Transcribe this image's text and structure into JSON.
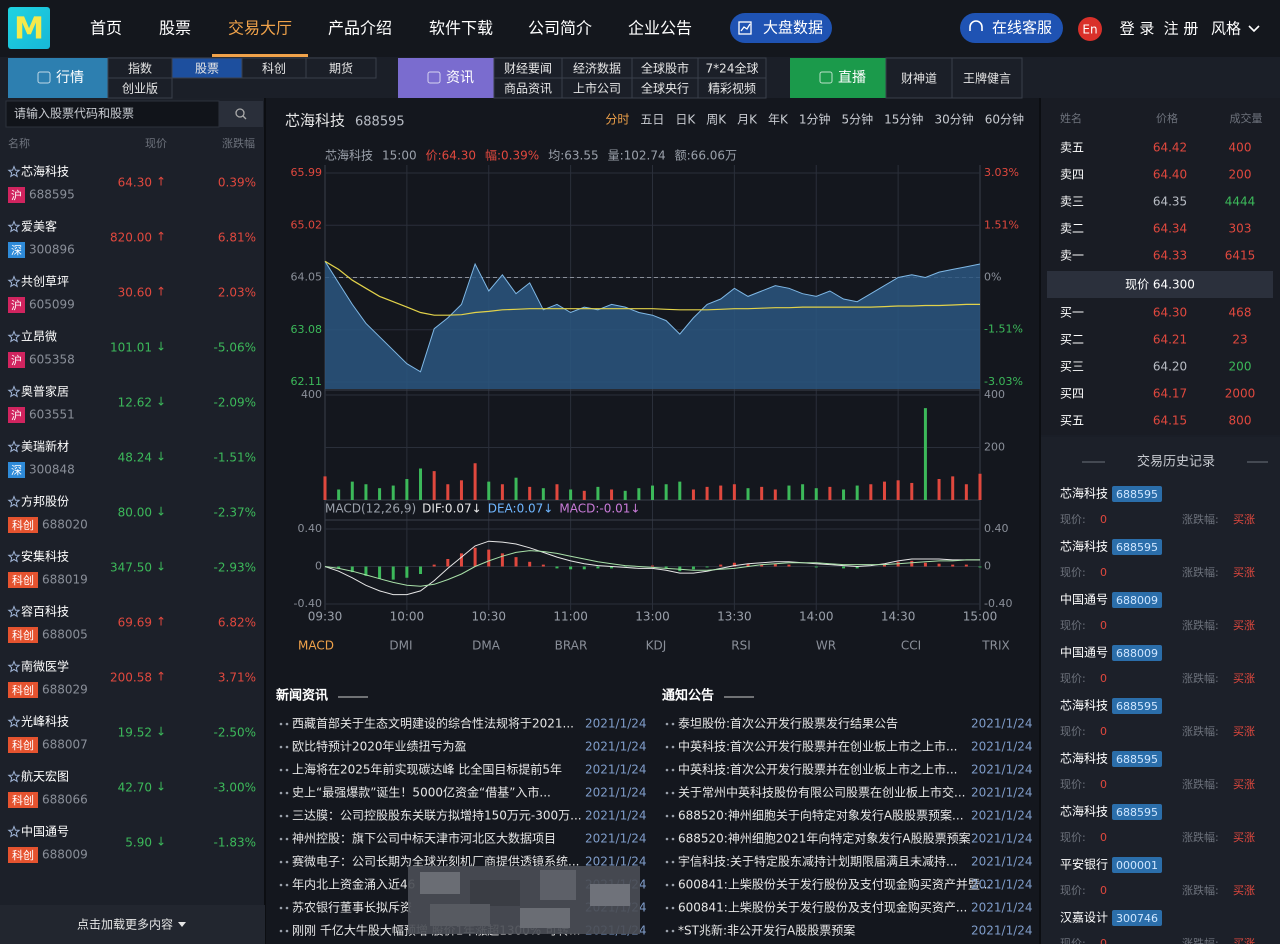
{
  "nav": {
    "logo": "M",
    "items": [
      "首页",
      "股票",
      "交易大厅",
      "产品介绍",
      "软件下载",
      "公司简介",
      "企业公告"
    ],
    "active": 2,
    "market_button": "大盘数据",
    "service": "在线客服",
    "lang": "En",
    "login": "登 录",
    "register": "注 册",
    "style": "风格"
  },
  "subnav": [
    {
      "label": "行情",
      "color": "#2d7fb0",
      "items": [
        "指数",
        "股票",
        "科创",
        "期货",
        "创业版"
      ],
      "active": 1
    },
    {
      "label": "资讯",
      "color": "#7a6ccf",
      "items": [
        "财经要闻",
        "经济数据",
        "全球股市",
        "7*24全球",
        "商品资讯",
        "上市公司",
        "全球央行",
        "精彩视频"
      ]
    },
    {
      "label": "直播",
      "color": "#1b9a4b",
      "items": [
        "财神道",
        "王牌健言"
      ]
    }
  ],
  "search": {
    "placeholder": "请输入股票代码和股票"
  },
  "stock_list": {
    "headers": [
      "名称",
      "现价",
      "涨跌幅"
    ],
    "market_colors": {
      "沪": "#d1245f",
      "深": "#2e8ad8",
      "科创": "#e5532f"
    },
    "rows": [
      {
        "name": "芯海科技",
        "market": "沪",
        "code": "688595",
        "price": "64.30",
        "arrow": "↑",
        "change": "0.39%"
      },
      {
        "name": "爱美客",
        "market": "深",
        "code": "300896",
        "price": "820.00",
        "arrow": "↑",
        "change": "6.81%"
      },
      {
        "name": "共创草坪",
        "market": "沪",
        "code": "605099",
        "price": "30.60",
        "arrow": "↑",
        "change": "2.03%"
      },
      {
        "name": "立昂微",
        "market": "沪",
        "code": "605358",
        "price": "101.01",
        "arrow": "↓",
        "change": "-5.06%"
      },
      {
        "name": "奥普家居",
        "market": "沪",
        "code": "603551",
        "price": "12.62",
        "arrow": "↓",
        "change": "-2.09%"
      },
      {
        "name": "美瑞新材",
        "market": "深",
        "code": "300848",
        "price": "48.24",
        "arrow": "↓",
        "change": "-1.51%"
      },
      {
        "name": "方邦股份",
        "market": "科创",
        "code": "688020",
        "price": "80.00",
        "arrow": "↓",
        "change": "-2.37%"
      },
      {
        "name": "安集科技",
        "market": "科创",
        "code": "688019",
        "price": "347.50",
        "arrow": "↓",
        "change": "-2.93%"
      },
      {
        "name": "容百科技",
        "market": "科创",
        "code": "688005",
        "price": "69.69",
        "arrow": "↑",
        "change": "6.82%"
      },
      {
        "name": "南微医学",
        "market": "科创",
        "code": "688029",
        "price": "200.58",
        "arrow": "↑",
        "change": "3.71%"
      },
      {
        "name": "光峰科技",
        "market": "科创",
        "code": "688007",
        "price": "19.52",
        "arrow": "↓",
        "change": "-2.50%"
      },
      {
        "name": "航天宏图",
        "market": "科创",
        "code": "688066",
        "price": "42.70",
        "arrow": "↓",
        "change": "-3.00%"
      },
      {
        "name": "中国通号",
        "market": "科创",
        "code": "688009",
        "price": "5.90",
        "arrow": "↓",
        "change": "-1.83%"
      }
    ],
    "load_more": "点击加载更多内容"
  },
  "stock": {
    "name": "芯海科技",
    "code": "688595",
    "periods": [
      "分时",
      "五日",
      "日K",
      "周K",
      "月K",
      "年K",
      "1分钟",
      "5分钟",
      "15分钟",
      "30分钟",
      "60分钟"
    ],
    "active_period": 0,
    "info": [
      {
        "text": "芯海科技",
        "color": "#9aa0aa"
      },
      {
        "text": "15:00",
        "color": "#9aa0aa"
      },
      {
        "text": "价:64.30",
        "color": "#e0483e"
      },
      {
        "text": "幅:0.39%",
        "color": "#e0483e"
      },
      {
        "text": "均:63.55",
        "color": "#9aa0aa"
      },
      {
        "text": "量:102.74",
        "color": "#9aa0aa"
      },
      {
        "text": "额:66.06万",
        "color": "#9aa0aa"
      }
    ],
    "indicators": [
      "MACD",
      "DMI",
      "DMA",
      "BRAR",
      "KDJ",
      "RSI",
      "WR",
      "CCI",
      "TRIX"
    ],
    "active_indicator": 0
  },
  "chart_data": [
    {
      "type": "line",
      "fill": "#2a5680",
      "categories": [
        "09:30",
        null,
        null,
        null,
        null,
        null,
        "10:00",
        null,
        null,
        null,
        null,
        null,
        "10:30",
        null,
        null,
        null,
        null,
        null,
        "11:00",
        null,
        null,
        null,
        null,
        null,
        "13:00",
        null,
        null,
        null,
        null,
        null,
        "13:30",
        null,
        null,
        null,
        null,
        null,
        "14:00",
        null,
        null,
        null,
        null,
        null,
        "14:30",
        null,
        null,
        null,
        null,
        null,
        "15:00"
      ],
      "series": [
        {
          "color": "#7fb8e6",
          "values": [
            64.35,
            63.95,
            63.55,
            63.2,
            62.95,
            62.7,
            62.45,
            62.3,
            63.1,
            63.3,
            63.55,
            64.3,
            63.8,
            64.1,
            63.75,
            63.95,
            63.45,
            63.55,
            63.4,
            63.5,
            63.45,
            63.55,
            63.5,
            63.4,
            63.35,
            63.25,
            63.0,
            63.3,
            63.55,
            63.65,
            63.85,
            63.7,
            63.8,
            63.9,
            63.85,
            63.75,
            63.7,
            63.8,
            63.65,
            63.6,
            63.75,
            63.9,
            64.05,
            64.1,
            64.05,
            64.15,
            64.2,
            64.25,
            64.3
          ]
        },
        {
          "color": "#e2d24a",
          "values": [
            64.35,
            64.2,
            64.0,
            63.85,
            63.7,
            63.6,
            63.5,
            63.4,
            63.35,
            63.35,
            63.36,
            63.4,
            63.42,
            63.45,
            63.46,
            63.47,
            63.47,
            63.47,
            63.47,
            63.47,
            63.47,
            63.47,
            63.47,
            63.47,
            63.47,
            63.46,
            63.45,
            63.45,
            63.45,
            63.46,
            63.47,
            63.47,
            63.48,
            63.49,
            63.49,
            63.5,
            63.5,
            63.5,
            63.5,
            63.5,
            63.5,
            63.51,
            63.52,
            63.52,
            63.53,
            63.53,
            63.54,
            63.55,
            63.55
          ]
        }
      ],
      "ylim": [
        62.11,
        65.99
      ],
      "yticks": [
        62.11,
        63.08,
        64.05,
        65.02,
        65.99
      ],
      "y2lim": [
        -3.03,
        3.03
      ],
      "y2ticks": [
        {
          "value": -3.03,
          "label": "-3.03%"
        },
        {
          "value": -1.51,
          "label": "-1.51%"
        },
        {
          "value": 0,
          "label": "0%"
        },
        {
          "value": 1.51,
          "label": "1.51%"
        },
        {
          "value": 3.03,
          "label": "3.03%"
        }
      ],
      "grid": true
    },
    {
      "type": "bar",
      "colors": {
        "up": "#e0483e",
        "down": "#3cb95a"
      },
      "values": [
        90,
        40,
        70,
        60,
        45,
        55,
        80,
        120,
        110,
        60,
        75,
        140,
        70,
        60,
        85,
        50,
        45,
        60,
        40,
        35,
        50,
        40,
        35,
        45,
        55,
        60,
        70,
        40,
        50,
        55,
        60,
        45,
        50,
        40,
        55,
        60,
        45,
        50,
        40,
        55,
        60,
        70,
        75,
        65,
        350,
        80,
        90,
        60,
        100
      ],
      "ylim": [
        0,
        400
      ],
      "yticks": [
        200,
        400
      ]
    },
    {
      "type": "macd",
      "title": "MACD(12,26,9)",
      "legend": [
        {
          "text": "DIF:0.07↓",
          "color": "#e6e6e6"
        },
        {
          "text": "DEA:0.07↓",
          "color": "#6fb6ff"
        },
        {
          "text": "MACD:-0.01↓",
          "color": "#c97bd8"
        }
      ],
      "colors": {
        "up": "#e0483e",
        "down": "#3cb95a"
      },
      "values": [
        0,
        -0.02,
        -0.06,
        -0.1,
        -0.13,
        -0.14,
        -0.12,
        -0.08,
        0.02,
        0.08,
        0.14,
        0.2,
        0.18,
        0.14,
        0.1,
        0.05,
        0.02,
        -0.02,
        -0.03,
        -0.03,
        -0.02,
        -0.02,
        -0.01,
        0,
        0.01,
        -0.02,
        -0.05,
        -0.03,
        -0.01,
        0.02,
        0.04,
        0.03,
        0.02,
        0.03,
        0.02,
        0,
        -0.01,
        0,
        -0.02,
        -0.02,
        0,
        0.03,
        0.05,
        0.06,
        0.04,
        0.03,
        0.02,
        0.02,
        -0.01
      ],
      "series": [
        {
          "color": "#e6e6e6",
          "values": [
            0,
            -0.05,
            -0.12,
            -0.2,
            -0.26,
            -0.3,
            -0.3,
            -0.26,
            -0.15,
            -0.02,
            0.1,
            0.22,
            0.27,
            0.26,
            0.24,
            0.2,
            0.15,
            0.1,
            0.06,
            0.03,
            0.01,
            0,
            -0.01,
            -0.02,
            -0.02,
            -0.04,
            -0.07,
            -0.07,
            -0.05,
            -0.02,
            0.01,
            0.03,
            0.04,
            0.05,
            0.05,
            0.04,
            0.03,
            0.02,
            0.01,
            0,
            0.01,
            0.03,
            0.06,
            0.08,
            0.08,
            0.08,
            0.07,
            0.07,
            0.07
          ]
        },
        {
          "color": "#a8e0a8",
          "values": [
            0,
            -0.02,
            -0.05,
            -0.09,
            -0.13,
            -0.17,
            -0.2,
            -0.21,
            -0.19,
            -0.14,
            -0.08,
            0,
            0.06,
            0.11,
            0.15,
            0.17,
            0.16,
            0.14,
            0.11,
            0.08,
            0.05,
            0.03,
            0.01,
            0,
            -0.01,
            -0.02,
            -0.03,
            -0.04,
            -0.04,
            -0.03,
            -0.02,
            0,
            0.02,
            0.03,
            0.04,
            0.04,
            0.04,
            0.03,
            0.02,
            0.02,
            0.02,
            0.02,
            0.03,
            0.04,
            0.05,
            0.06,
            0.06,
            0.07,
            0.07
          ]
        }
      ],
      "ylim": [
        -0.4,
        0.4
      ],
      "yticks": [
        {
          "value": -0.4,
          "label": "-0.40"
        },
        0,
        {
          "value": 0.4,
          "label": "0.40"
        }
      ]
    }
  ],
  "news": {
    "title": "新闻资讯",
    "items": [
      {
        "title": "西藏首部关于生态文明建设的综合性法规将于2021...",
        "date": "2021/1/24"
      },
      {
        "title": "欧比特预计2020年业绩扭亏为盈",
        "date": "2021/1/24"
      },
      {
        "title": "上海将在2025年前实现碳达峰 比全国目标提前5年",
        "date": "2021/1/24"
      },
      {
        "title": "史上“最强爆款”诞生！5000亿资金“借基”入市...",
        "date": "2021/1/24"
      },
      {
        "title": "三达膜：公司控股股东关联方拟增持150万元-300万...",
        "date": "2021/1/24"
      },
      {
        "title": "神州控股：旗下公司中标天津市河北区大数据项目",
        "date": "2021/1/24"
      },
      {
        "title": "赛微电子：公司长期为全球光刻机厂商提供透镜系统...",
        "date": "2021/1/24"
      },
      {
        "title": "年内北上资金涌入近46",
        "date": "2021/1/24"
      },
      {
        "title": "苏农银行董事长拟斥资",
        "date": "2021/1/24"
      },
      {
        "title": "刚刚 千亿大牛股大幅预增 股价1年涨超1300% 可转...",
        "date": "2021/1/24"
      }
    ]
  },
  "notices": {
    "title": "通知公告",
    "items": [
      {
        "title": "泰坦股份:首次公开发行股票发行结果公告",
        "date": "2021/1/24"
      },
      {
        "title": "中英科技:首次公开发行股票并在创业板上市之上市...",
        "date": "2021/1/24"
      },
      {
        "title": "中英科技:首次公开发行股票并在创业板上市之上市...",
        "date": "2021/1/24"
      },
      {
        "title": "关于常州中英科技股份有限公司股票在创业板上市交...",
        "date": "2021/1/24"
      },
      {
        "title": "688520:神州细胞关于向特定对象发行A股股票预案...",
        "date": "2021/1/24"
      },
      {
        "title": "688520:神州细胞2021年向特定对象发行A股股票预案",
        "date": "2021/1/24"
      },
      {
        "title": "宇信科技:关于特定股东减持计划期限届满且未减持...",
        "date": "2021/1/24"
      },
      {
        "title": "600841:上柴股份关于发行股份及支付现金购买资产并暨...",
        "date": "2021/1/24"
      },
      {
        "title": "600841:上柴股份关于发行股份及支付现金购买资产...",
        "date": "2021/1/24"
      },
      {
        "title": "*ST兆新:非公开发行A股股票预案",
        "date": "2021/1/24"
      }
    ]
  },
  "order_book": {
    "headers": [
      "姓名",
      "价格",
      "成交量"
    ],
    "sells": [
      {
        "label": "卖五",
        "price": "64.42",
        "volume": "400",
        "price_color": "#e0483e",
        "volume_color": "#e0483e"
      },
      {
        "label": "卖四",
        "price": "64.40",
        "volume": "200",
        "price_color": "#e0483e",
        "volume_color": "#e0483e"
      },
      {
        "label": "卖三",
        "price": "64.35",
        "volume": "4444",
        "price_color": "#b8bcc4",
        "volume_color": "#3cb95a"
      },
      {
        "label": "卖二",
        "price": "64.34",
        "volume": "303",
        "price_color": "#e0483e",
        "volume_color": "#e0483e"
      },
      {
        "label": "卖一",
        "price": "64.33",
        "volume": "6415",
        "price_color": "#e0483e",
        "volume_color": "#e0483e"
      }
    ],
    "current": "现价 64.300",
    "buys": [
      {
        "label": "买一",
        "price": "64.30",
        "volume": "468",
        "price_color": "#e0483e",
        "volume_color": "#e0483e"
      },
      {
        "label": "买二",
        "price": "64.21",
        "volume": "23",
        "price_color": "#e0483e",
        "volume_color": "#e0483e"
      },
      {
        "label": "买三",
        "price": "64.20",
        "volume": "200",
        "price_color": "#b8bcc4",
        "volume_color": "#3cb95a"
      },
      {
        "label": "买四",
        "price": "64.17",
        "volume": "2000",
        "price_color": "#e0483e",
        "volume_color": "#e0483e"
      },
      {
        "label": "买五",
        "price": "64.15",
        "volume": "800",
        "price_color": "#e0483e",
        "volume_color": "#e0483e"
      }
    ]
  },
  "history": {
    "title": "交易历史记录",
    "price_label": "现价:",
    "change_label": "涨跌幅:",
    "entries": [
      {
        "name": "芯海科技",
        "code": "688595",
        "price": "0",
        "action": "买涨"
      },
      {
        "name": "芯海科技",
        "code": "688595",
        "price": "0",
        "action": "买涨"
      },
      {
        "name": "中国通号",
        "code": "688009",
        "price": "0",
        "action": "买涨"
      },
      {
        "name": "中国通号",
        "code": "688009",
        "price": "0",
        "action": "买涨"
      },
      {
        "name": "芯海科技",
        "code": "688595",
        "price": "0",
        "action": "买涨"
      },
      {
        "name": "芯海科技",
        "code": "688595",
        "price": "0",
        "action": "买涨"
      },
      {
        "name": "芯海科技",
        "code": "688595",
        "price": "0",
        "action": "买涨"
      },
      {
        "name": "平安银行",
        "code": "000001",
        "price": "0",
        "action": "买涨"
      },
      {
        "name": "汉嘉设计",
        "code": "300746",
        "price": "0",
        "action": "买涨"
      }
    ]
  }
}
